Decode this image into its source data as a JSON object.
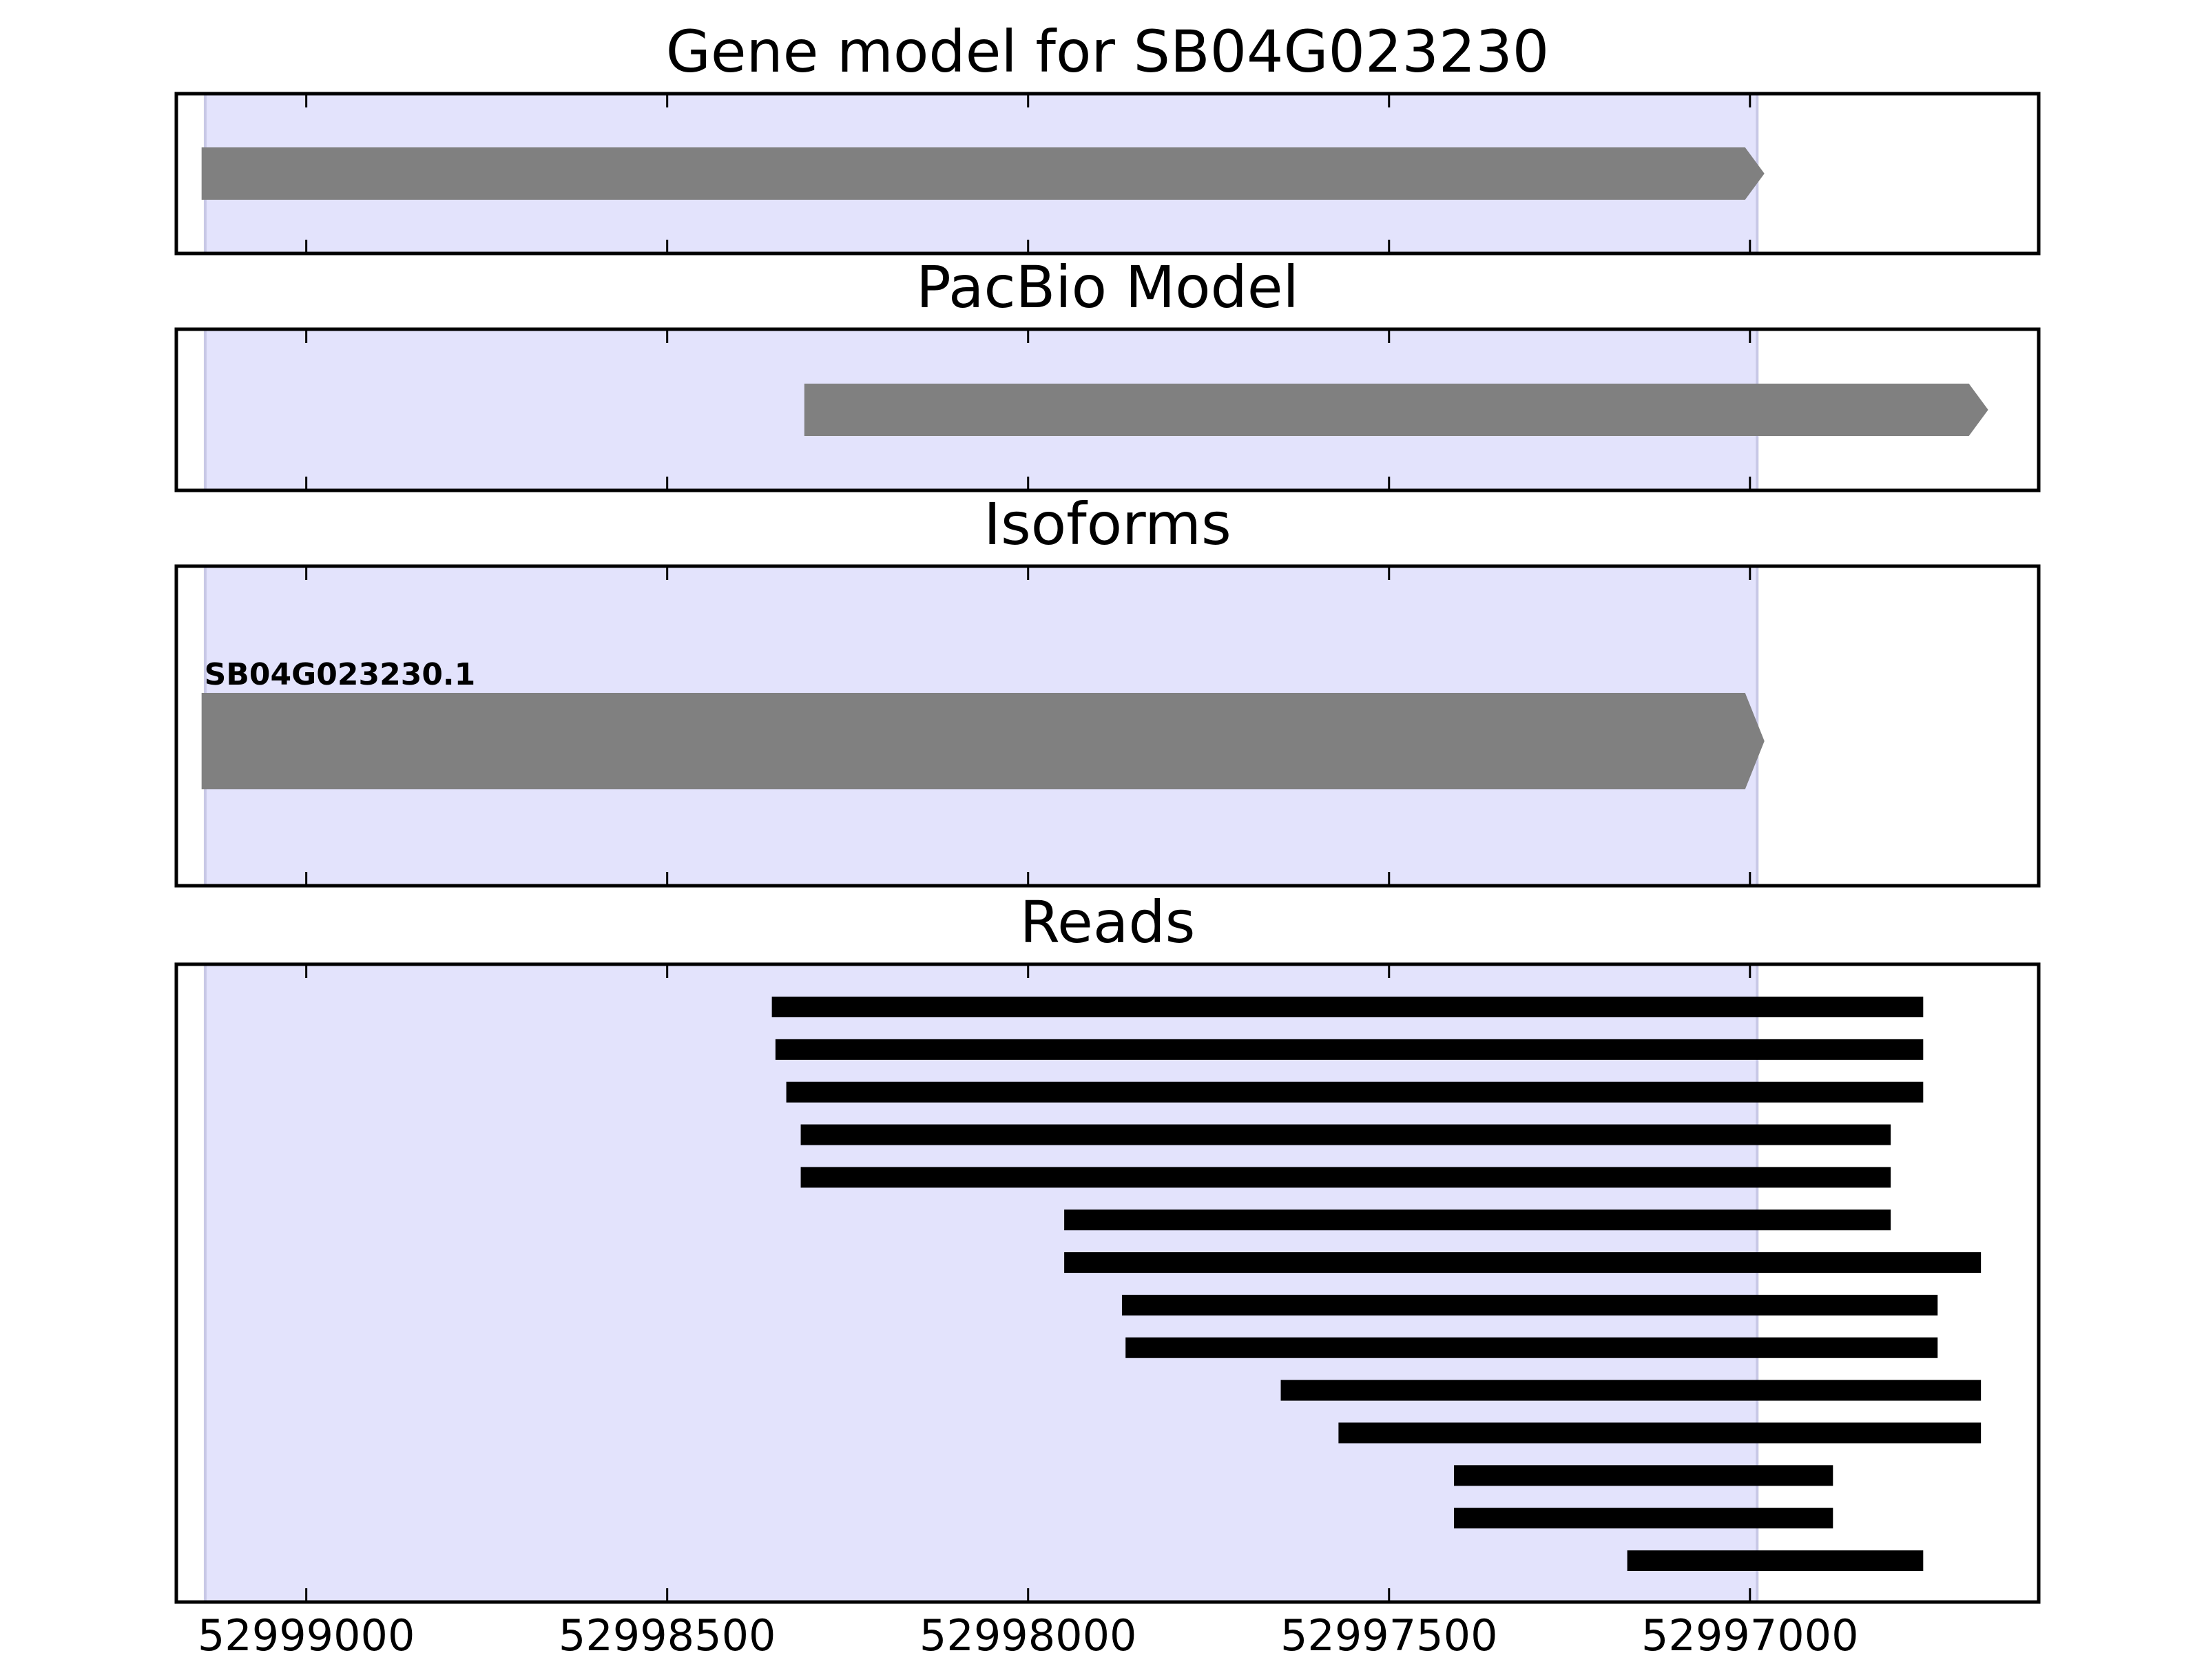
{
  "chart_data": [
    {
      "type": "bar",
      "title": "Gene model for SB04G023230",
      "xlim": [
        52999180,
        52996600
      ],
      "xticks": [
        52999000,
        52998500,
        52998000,
        52997500,
        52997000
      ],
      "shaded_region": [
        52999140,
        52996990
      ],
      "shaded_color": "#e3e3fc",
      "shaded_edge_color": "#c8c8e6",
      "feature_color": "#808080",
      "features": [
        {
          "start": 52999145,
          "end": 52996980,
          "strand": "-"
        }
      ]
    },
    {
      "type": "bar",
      "title": "PacBio Model",
      "xlim": [
        52999180,
        52996600
      ],
      "xticks": [
        52999000,
        52998500,
        52998000,
        52997500,
        52997000
      ],
      "shaded_region": [
        52999140,
        52996990
      ],
      "feature_color": "#808080",
      "features": [
        {
          "start": 52998310,
          "end": 52996670,
          "strand": "-"
        }
      ]
    },
    {
      "type": "bar",
      "title": "Isoforms",
      "xlim": [
        52999180,
        52996600
      ],
      "xticks": [
        52999000,
        52998500,
        52998000,
        52997500,
        52997000
      ],
      "shaded_region": [
        52999140,
        52996990
      ],
      "feature_color": "#808080",
      "features": [
        {
          "name": "SB04G023230.1",
          "start": 52999145,
          "end": 52996980,
          "strand": "-"
        }
      ]
    },
    {
      "type": "bar",
      "title": "Reads",
      "xlim": [
        52999180,
        52996600
      ],
      "xticks": [
        52999000,
        52998500,
        52998000,
        52997500,
        52997000
      ],
      "xtick_labels": [
        "52999000",
        "52998500",
        "52998000",
        "52997500",
        "52997000"
      ],
      "shaded_region": [
        52999140,
        52996990
      ],
      "read_color": "#000000",
      "reads": [
        {
          "start": 52998355,
          "end": 52996760
        },
        {
          "start": 52998350,
          "end": 52996760
        },
        {
          "start": 52998335,
          "end": 52996760
        },
        {
          "start": 52998315,
          "end": 52996805
        },
        {
          "start": 52998315,
          "end": 52996805
        },
        {
          "start": 52997950,
          "end": 52996805
        },
        {
          "start": 52997950,
          "end": 52996680
        },
        {
          "start": 52997870,
          "end": 52996740
        },
        {
          "start": 52997865,
          "end": 52996740
        },
        {
          "start": 52997650,
          "end": 52996680
        },
        {
          "start": 52997570,
          "end": 52996680
        },
        {
          "start": 52997410,
          "end": 52996885
        },
        {
          "start": 52997410,
          "end": 52996885
        },
        {
          "start": 52997170,
          "end": 52996760
        }
      ]
    }
  ]
}
